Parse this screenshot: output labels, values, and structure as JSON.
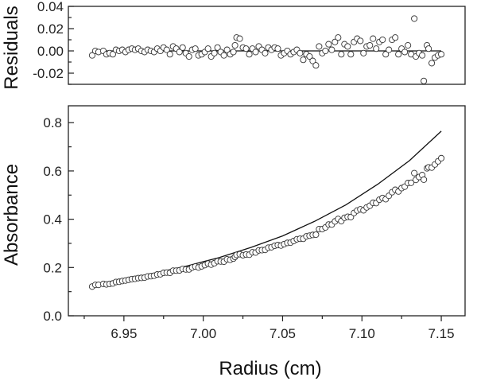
{
  "chart_data": [
    {
      "type": "scatter",
      "name": "residuals-panel",
      "xlabel": "",
      "ylabel": "Residuals",
      "xlim": [
        6.915,
        7.165
      ],
      "ylim": [
        -0.03,
        0.04
      ],
      "y_ticks": [
        "0.04",
        "0.02",
        "0.00",
        "-0.02"
      ],
      "y_tick_values": [
        0.04,
        0.02,
        0.0,
        -0.02
      ],
      "reference_line_y": 0.0,
      "grid": false,
      "series": [
        {
          "marker": "open-circle",
          "x": [
            6.93,
            6.932,
            6.934,
            6.937,
            6.939,
            6.941,
            6.943,
            6.945,
            6.947,
            6.949,
            6.951,
            6.953,
            6.955,
            6.957,
            6.959,
            6.961,
            6.963,
            6.965,
            6.967,
            6.969,
            6.971,
            6.973,
            6.975,
            6.977,
            6.979,
            6.981,
            6.983,
            6.985,
            6.987,
            6.989,
            6.991,
            6.993,
            6.995,
            6.997,
            6.999,
            7.001,
            7.003,
            7.005,
            7.007,
            7.009,
            7.011,
            7.013,
            7.015,
            7.017,
            7.019,
            7.02,
            7.021,
            7.023,
            7.025,
            7.027,
            7.029,
            7.031,
            7.033,
            7.035,
            7.037,
            7.039,
            7.041,
            7.043,
            7.045,
            7.047,
            7.049,
            7.051,
            7.053,
            7.055,
            7.057,
            7.059,
            7.061,
            7.063,
            7.065,
            7.067,
            7.069,
            7.071,
            7.073,
            7.075,
            7.077,
            7.079,
            7.081,
            7.083,
            7.085,
            7.087,
            7.089,
            7.091,
            7.093,
            7.095,
            7.097,
            7.099,
            7.101,
            7.103,
            7.105,
            7.107,
            7.109,
            7.111,
            7.113,
            7.115,
            7.117,
            7.119,
            7.121,
            7.123,
            7.125,
            7.127,
            7.129,
            7.131,
            7.133,
            7.134,
            7.136,
            7.138,
            7.139,
            7.141,
            7.142,
            7.144,
            7.146,
            7.148,
            7.15
          ],
          "y": [
            -0.004,
            0.0,
            -0.001,
            0.0,
            -0.003,
            -0.002,
            -0.003,
            0.001,
            0.0,
            0.001,
            -0.001,
            0.001,
            0.002,
            0.001,
            0.002,
            0.0,
            -0.001,
            0.001,
            0.0,
            -0.001,
            0.002,
            0.0,
            0.003,
            0.001,
            -0.003,
            0.004,
            0.002,
            -0.001,
            0.003,
            -0.002,
            -0.005,
            0.001,
            0.002,
            -0.004,
            -0.003,
            -0.001,
            0.002,
            -0.005,
            -0.002,
            0.003,
            -0.001,
            -0.004,
            0.001,
            -0.003,
            -0.001,
            0.005,
            0.012,
            0.011,
            0.003,
            0.002,
            -0.003,
            0.002,
            -0.001,
            0.004,
            0.001,
            -0.002,
            0.003,
            0.001,
            0.003,
            0.002,
            -0.004,
            -0.002,
            0.0,
            -0.003,
            -0.001,
            0.001,
            -0.002,
            -0.008,
            -0.003,
            -0.005,
            -0.009,
            -0.013,
            0.004,
            -0.002,
            0.0,
            0.006,
            0.001,
            0.008,
            0.012,
            -0.003,
            0.006,
            0.004,
            -0.003,
            0.008,
            0.011,
            0.009,
            -0.002,
            0.004,
            0.005,
            0.011,
            0.002,
            0.008,
            0.01,
            -0.003,
            0.001,
            0.01,
            0.012,
            -0.003,
            0.002,
            -0.001,
            0.005,
            -0.003,
            0.029,
            -0.005,
            -0.002,
            -0.004,
            -0.027,
            0.005,
            0.002,
            -0.011,
            -0.006,
            -0.004,
            -0.003
          ]
        }
      ]
    },
    {
      "type": "scatter",
      "name": "absorbance-panel",
      "xlabel": "Radius (cm)",
      "ylabel": "Absorbance",
      "xlim": [
        6.915,
        7.165
      ],
      "ylim": [
        0.0,
        0.87
      ],
      "x_ticks": [
        "6.95",
        "7.00",
        "7.05",
        "7.10",
        "7.15"
      ],
      "x_tick_values": [
        6.95,
        7.0,
        7.05,
        7.1,
        7.15
      ],
      "y_ticks": [
        "0.8",
        "0.6",
        "0.4",
        "0.2",
        "0.0"
      ],
      "y_tick_values": [
        0.8,
        0.6,
        0.4,
        0.2,
        0.0
      ],
      "grid": false,
      "fit_curve": {
        "x": [
          6.93,
          6.95,
          6.97,
          6.99,
          7.01,
          7.03,
          7.05,
          7.07,
          7.09,
          7.11,
          7.13,
          7.15
        ],
        "y": [
          0.125,
          0.15,
          0.178,
          0.207,
          0.241,
          0.283,
          0.331,
          0.391,
          0.46,
          0.545,
          0.643,
          0.765
        ]
      },
      "series": [
        {
          "marker": "open-circle",
          "x": [
            6.93,
            6.932,
            6.934,
            6.937,
            6.939,
            6.941,
            6.943,
            6.945,
            6.947,
            6.949,
            6.951,
            6.953,
            6.955,
            6.957,
            6.959,
            6.961,
            6.963,
            6.965,
            6.967,
            6.969,
            6.971,
            6.973,
            6.975,
            6.977,
            6.979,
            6.981,
            6.983,
            6.985,
            6.987,
            6.989,
            6.991,
            6.993,
            6.995,
            6.997,
            6.999,
            7.001,
            7.003,
            7.005,
            7.007,
            7.009,
            7.011,
            7.013,
            7.015,
            7.017,
            7.019,
            7.02,
            7.021,
            7.023,
            7.025,
            7.027,
            7.029,
            7.031,
            7.033,
            7.035,
            7.037,
            7.039,
            7.041,
            7.043,
            7.045,
            7.047,
            7.049,
            7.051,
            7.053,
            7.055,
            7.057,
            7.059,
            7.061,
            7.063,
            7.065,
            7.067,
            7.069,
            7.071,
            7.073,
            7.075,
            7.077,
            7.079,
            7.081,
            7.083,
            7.085,
            7.087,
            7.089,
            7.091,
            7.093,
            7.095,
            7.097,
            7.099,
            7.101,
            7.103,
            7.105,
            7.107,
            7.109,
            7.111,
            7.113,
            7.115,
            7.117,
            7.119,
            7.121,
            7.123,
            7.125,
            7.127,
            7.129,
            7.131,
            7.133,
            7.134,
            7.136,
            7.138,
            7.139,
            7.141,
            7.142,
            7.144,
            7.146,
            7.148,
            7.15
          ],
          "y": [
            0.121,
            0.128,
            0.128,
            0.132,
            0.13,
            0.132,
            0.134,
            0.14,
            0.141,
            0.144,
            0.146,
            0.149,
            0.152,
            0.153,
            0.156,
            0.157,
            0.158,
            0.163,
            0.164,
            0.166,
            0.171,
            0.172,
            0.178,
            0.179,
            0.178,
            0.187,
            0.187,
            0.188,
            0.194,
            0.192,
            0.192,
            0.2,
            0.204,
            0.2,
            0.205,
            0.21,
            0.216,
            0.212,
            0.218,
            0.226,
            0.225,
            0.224,
            0.234,
            0.232,
            0.237,
            0.244,
            0.252,
            0.255,
            0.251,
            0.254,
            0.253,
            0.263,
            0.262,
            0.271,
            0.272,
            0.273,
            0.282,
            0.284,
            0.29,
            0.293,
            0.291,
            0.297,
            0.302,
            0.303,
            0.31,
            0.317,
            0.319,
            0.319,
            0.329,
            0.332,
            0.335,
            0.336,
            0.359,
            0.359,
            0.366,
            0.378,
            0.378,
            0.391,
            0.401,
            0.392,
            0.406,
            0.41,
            0.409,
            0.426,
            0.436,
            0.441,
            0.437,
            0.449,
            0.456,
            0.468,
            0.467,
            0.481,
            0.488,
            0.483,
            0.497,
            0.512,
            0.522,
            0.515,
            0.529,
            0.535,
            0.55,
            0.551,
            0.591,
            0.563,
            0.575,
            0.583,
            0.564,
            0.611,
            0.615,
            0.614,
            0.627,
            0.64,
            0.653
          ]
        }
      ]
    }
  ]
}
